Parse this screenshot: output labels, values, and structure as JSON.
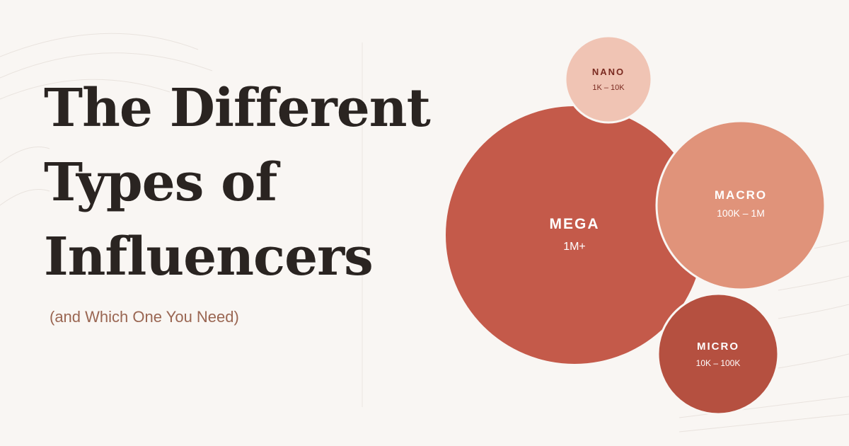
{
  "title": [
    "The Different",
    "Types of",
    "Influencers"
  ],
  "subtitle": "(and Which One You Need)",
  "nodes": [
    {
      "label": "NANO",
      "range": "1K – 10K"
    },
    {
      "label": "MEGA",
      "range": "1M+"
    },
    {
      "label": "MACRO",
      "range": "100K – 1M"
    },
    {
      "label": "MICRO",
      "range": "10K – 100K"
    }
  ]
}
